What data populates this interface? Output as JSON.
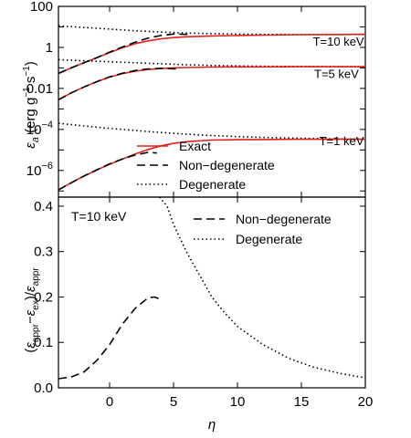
{
  "chart_data": [
    {
      "type": "line",
      "panel": "top",
      "yscale": "log",
      "xlim": [
        -4,
        20
      ],
      "ylim_exponent": [
        -7.3,
        2
      ],
      "ylabel": "ε_a (erg g⁻¹ s⁻¹)",
      "ytick_labels": [
        {
          "exp": 2,
          "label": "100"
        },
        {
          "exp": 0,
          "label": "1"
        },
        {
          "exp": -2,
          "label": "0.01"
        },
        {
          "exp": -4,
          "base": "10",
          "sup": "−4"
        },
        {
          "exp": -6,
          "base": "10",
          "sup": "−6"
        }
      ],
      "annotations": [
        {
          "text": "T=10 keV",
          "x": 15.9,
          "log10_y": 0.32
        },
        {
          "text": "T=5 keV",
          "x": 16.0,
          "log10_y": -1.28
        },
        {
          "text": "T=1 keV",
          "x": 16.4,
          "log10_y": -4.54
        }
      ],
      "legend": {
        "position": "bottom-center",
        "entries": [
          {
            "label": "Exact",
            "style": "solid",
            "color": "#e0201b"
          },
          {
            "label": "Non−degenerate",
            "style": "dashed",
            "color": "#000000"
          },
          {
            "label": "Degenerate",
            "style": "dotted",
            "color": "#000000"
          }
        ]
      },
      "series": [
        {
          "name": "T=10 keV",
          "exact": {
            "x": [
              -4,
              -3,
              -2,
              -1,
              0,
              1,
              2,
              3,
              4,
              5,
              6,
              8,
              10,
              12,
              15,
              18,
              20
            ],
            "log10_y": [
              -1.27,
              -1.0,
              -0.75,
              -0.5,
              -0.25,
              -0.02,
              0.18,
              0.32,
              0.42,
              0.48,
              0.52,
              0.56,
              0.58,
              0.6,
              0.62,
              0.63,
              0.64
            ]
          },
          "nondegenerate": {
            "x": [
              -4,
              -3,
              -2,
              -1,
              0,
              1,
              2,
              3,
              4,
              5,
              6.3
            ],
            "log10_y": [
              -1.27,
              -1.0,
              -0.75,
              -0.5,
              -0.23,
              0.02,
              0.25,
              0.45,
              0.58,
              0.65,
              0.63
            ]
          },
          "degenerate": {
            "x": [
              -4,
              -2,
              0,
              2,
              4,
              6,
              8,
              10,
              12,
              15,
              18,
              20
            ],
            "log10_y": [
              1.05,
              0.97,
              0.89,
              0.81,
              0.75,
              0.7,
              0.67,
              0.65,
              0.64,
              0.63,
              0.63,
              0.63
            ]
          }
        },
        {
          "name": "T=5 keV",
          "exact": {
            "x": [
              -4,
              -3,
              -2,
              -1,
              0,
              1,
              2,
              3,
              4,
              5,
              6,
              8,
              10,
              12,
              15,
              18,
              20
            ],
            "log10_y": [
              -2.55,
              -2.22,
              -1.93,
              -1.67,
              -1.45,
              -1.28,
              -1.16,
              -1.08,
              -1.03,
              -1.0,
              -0.98,
              -0.96,
              -0.95,
              -0.95,
              -0.94,
              -0.94,
              -0.94
            ]
          },
          "nondegenerate": {
            "x": [
              -4,
              -3,
              -2,
              -1,
              0,
              1,
              2,
              3,
              4,
              5.3
            ],
            "log10_y": [
              -2.55,
              -2.22,
              -1.93,
              -1.67,
              -1.44,
              -1.26,
              -1.13,
              -1.05,
              -1.02,
              -1.05
            ]
          },
          "degenerate": {
            "x": [
              -4,
              -2,
              0,
              2,
              4,
              6,
              8,
              10,
              12,
              15,
              18,
              20
            ],
            "log10_y": [
              -0.6,
              -0.65,
              -0.7,
              -0.75,
              -0.8,
              -0.85,
              -0.88,
              -0.9,
              -0.92,
              -0.93,
              -0.94,
              -0.94
            ]
          }
        },
        {
          "name": "T=1 keV",
          "exact": {
            "x": [
              -4,
              -3,
              -2,
              -1,
              0,
              1,
              2,
              3,
              4,
              5,
              6,
              8,
              10,
              12,
              15,
              18,
              20
            ],
            "log10_y": [
              -6.95,
              -6.6,
              -6.27,
              -5.98,
              -5.7,
              -5.45,
              -5.2,
              -4.98,
              -4.8,
              -4.68,
              -4.6,
              -4.52,
              -4.5,
              -4.49,
              -4.48,
              -4.48,
              -4.48
            ]
          },
          "nondegenerate": {
            "x": [
              -4,
              -3,
              -2,
              -1,
              0,
              1,
              2,
              3,
              3.7
            ],
            "log10_y": [
              -6.95,
              -6.6,
              -6.27,
              -5.97,
              -5.68,
              -5.44,
              -5.25,
              -5.12,
              -5.15
            ]
          },
          "degenerate": {
            "x": [
              -4,
              -2,
              0,
              2,
              4,
              6,
              8,
              10,
              12,
              15,
              18,
              20
            ],
            "log10_y": [
              -3.7,
              -3.83,
              -3.95,
              -4.05,
              -4.15,
              -4.23,
              -4.3,
              -4.35,
              -4.39,
              -4.43,
              -4.46,
              -4.47
            ]
          }
        }
      ]
    },
    {
      "type": "line",
      "panel": "bottom",
      "xlim": [
        -4,
        20
      ],
      "ylim": [
        0,
        0.42
      ],
      "xlabel": "η",
      "ylabel": "(ε_appr−ε_ex)/ε_appr",
      "xticks": [
        0,
        5,
        10,
        15,
        20
      ],
      "yticks": [
        0.0,
        0.1,
        0.2,
        0.3,
        0.4
      ],
      "xtick_labels": [
        "0",
        "5",
        "10",
        "15",
        "20"
      ],
      "ytick_labels": [
        "0.0",
        "0.1",
        "0.2",
        "0.3",
        "0.4"
      ],
      "annotation": "T=10 keV",
      "legend": {
        "position": "top-right",
        "entries": [
          {
            "label": "Non−degenerate",
            "style": "dashed"
          },
          {
            "label": "Degenerate",
            "style": "dotted"
          }
        ]
      },
      "series": [
        {
          "name": "Non−degenerate",
          "style": "dashed",
          "x": [
            -4,
            -3,
            -2,
            -1,
            0,
            1,
            2,
            3,
            3.5,
            4
          ],
          "y": [
            0.02,
            0.024,
            0.035,
            0.06,
            0.095,
            0.14,
            0.175,
            0.198,
            0.2,
            0.195
          ]
        },
        {
          "name": "Degenerate",
          "style": "dotted",
          "x": [
            3.9,
            4.5,
            5,
            6,
            7,
            8,
            9,
            10,
            12,
            14,
            16,
            18,
            20
          ],
          "y": [
            0.42,
            0.4,
            0.36,
            0.3,
            0.25,
            0.2,
            0.165,
            0.135,
            0.095,
            0.065,
            0.045,
            0.032,
            0.022
          ]
        }
      ]
    }
  ]
}
